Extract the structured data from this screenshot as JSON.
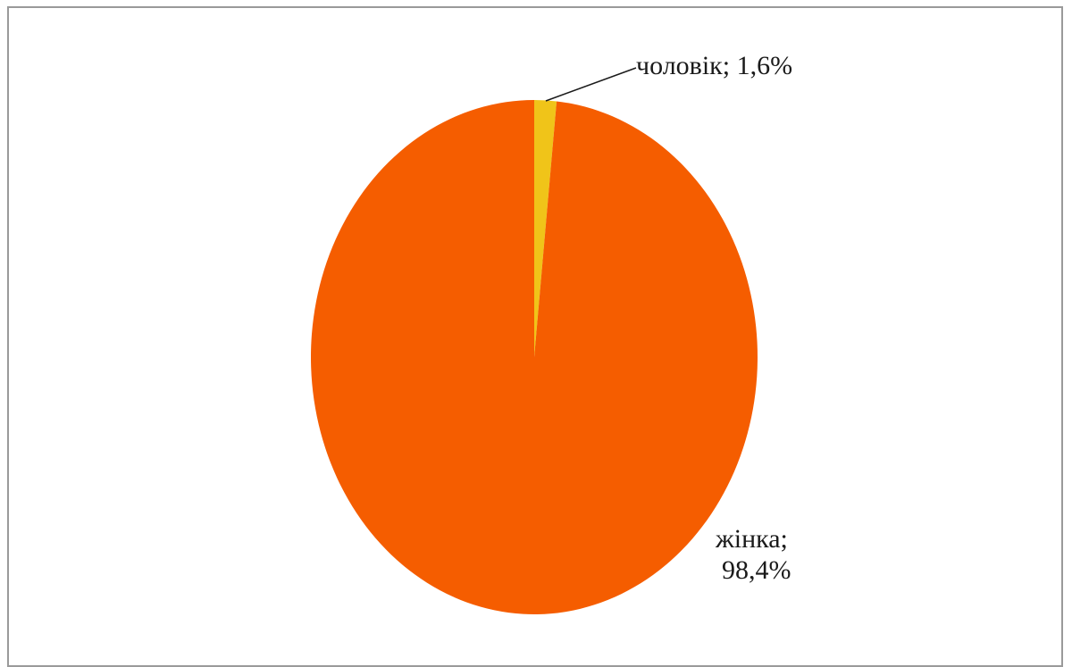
{
  "chart_data": {
    "type": "pie",
    "title": "",
    "slices": [
      {
        "label": "чоловік",
        "value": 1.6,
        "value_text": "1,6%",
        "color": "#F0C419"
      },
      {
        "label": "жінка",
        "value": 98.4,
        "value_text": "98,4%",
        "color": "#F55D00"
      }
    ],
    "legend": "none",
    "start_angle_deg": 0,
    "direction": "clockwise"
  },
  "labels": {
    "slice0_text": "чоловік; 1,6%",
    "slice1_line1": "жінка;",
    "slice1_line2": "98,4%"
  },
  "colors": {
    "frame": "#9a9a9a",
    "background": "#ffffff",
    "text": "#1a1a1a"
  }
}
